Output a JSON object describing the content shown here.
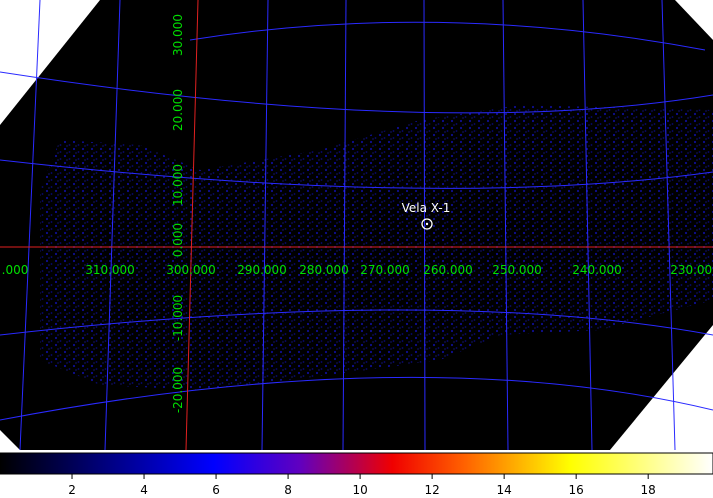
{
  "grid_labels": {
    "longitude": [
      ".000",
      "310.000",
      "300.000",
      "290.000",
      "280.000",
      "270.000",
      "260.000",
      "250.000",
      "240.000",
      "230.000"
    ],
    "latitude": [
      "30.000",
      "20.000",
      "10.000",
      "0.000",
      "-10.000",
      "-20.000"
    ]
  },
  "source": {
    "label": "Vela X-1"
  },
  "colorbar": {
    "range": [
      0,
      19.8
    ],
    "ticks": [
      2,
      4,
      6,
      8,
      10,
      12,
      14,
      16,
      18
    ]
  }
}
